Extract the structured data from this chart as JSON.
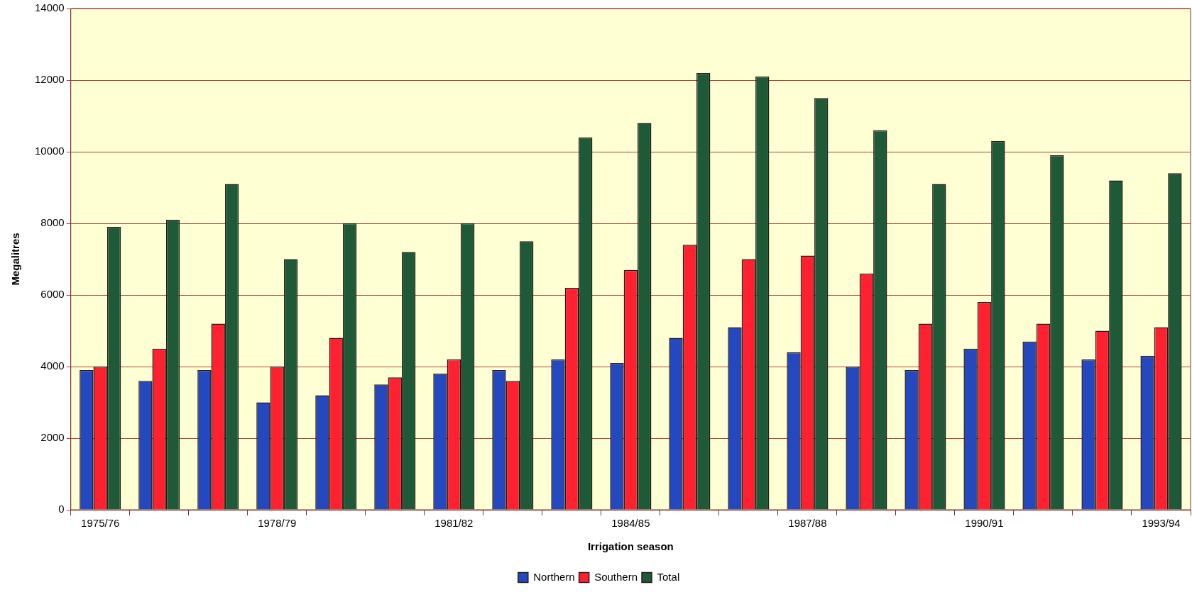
{
  "chart_data": {
    "type": "bar",
    "xlabel": "Irrigation season",
    "ylabel": "Megalitres",
    "categories": [
      "1975/76",
      null,
      null,
      "1978/79",
      null,
      null,
      "1981/82",
      null,
      null,
      "1984/85",
      null,
      null,
      "1987/88",
      null,
      null,
      "1990/91",
      null,
      null,
      "1993/94"
    ],
    "series": [
      {
        "name": "Northern",
        "color": "#2448c0",
        "values": [
          3900,
          3600,
          3900,
          3000,
          3200,
          3500,
          3800,
          3900,
          4200,
          4100,
          4800,
          5100,
          4400,
          4000,
          3900,
          4500,
          4700,
          4200,
          4300
        ]
      },
      {
        "name": "Southern",
        "color": "#ff2030",
        "values": [
          4000,
          4500,
          5200,
          4000,
          4800,
          3700,
          4200,
          3600,
          6200,
          6700,
          7400,
          7000,
          7100,
          6600,
          5200,
          5800,
          5200,
          5000,
          5100
        ]
      },
      {
        "name": "Total",
        "color": "#1e5a38",
        "values": [
          7900,
          8100,
          9100,
          7000,
          8000,
          7200,
          8000,
          7500,
          10400,
          10800,
          12200,
          12100,
          11500,
          10600,
          9100,
          10300,
          9900,
          9200,
          9400
        ]
      }
    ],
    "ylim": [
      0,
      14000
    ],
    "yticks": [
      0,
      2000,
      4000,
      6000,
      8000,
      10000,
      12000,
      14000
    ],
    "grid": "y",
    "legend": "bottom"
  }
}
